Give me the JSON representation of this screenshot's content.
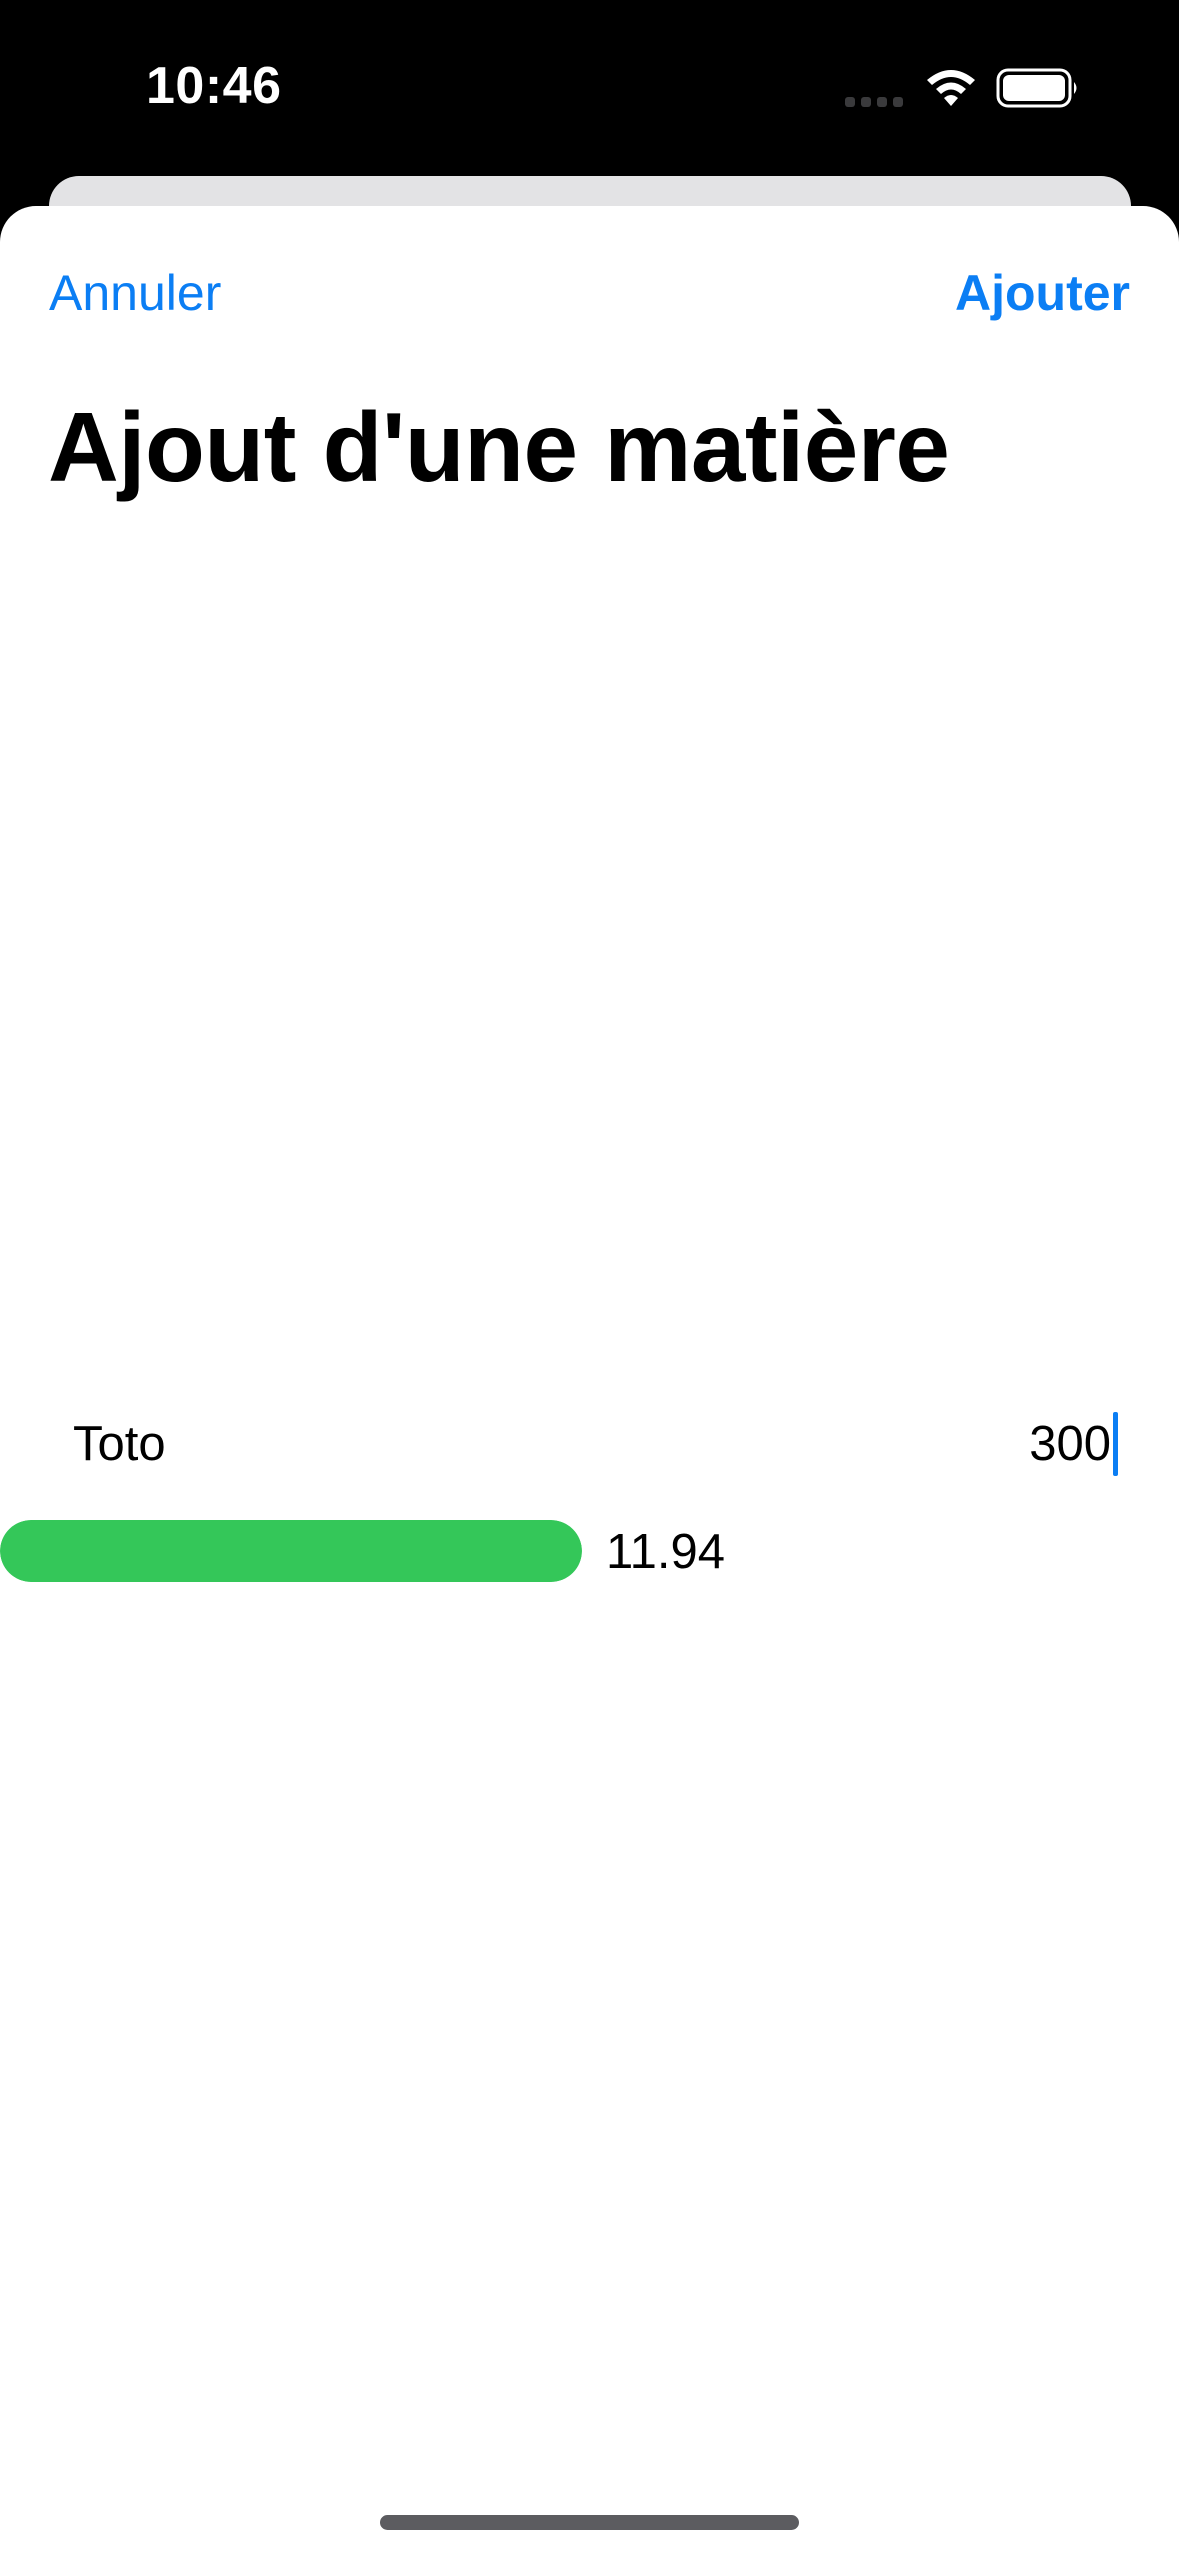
{
  "status_bar": {
    "time": "10:46",
    "icons": [
      "cellular-dots-icon",
      "wifi-icon",
      "battery-icon"
    ]
  },
  "nav": {
    "cancel_label": "Annuler",
    "add_label": "Ajouter"
  },
  "title": "Ajout d'une matière",
  "entry": {
    "name": "Toto",
    "value": "300"
  },
  "progress": {
    "label": "11.94",
    "fill_color": "#34c759"
  },
  "colors": {
    "accent": "#0b7ef4",
    "progress_green": "#34c759"
  }
}
